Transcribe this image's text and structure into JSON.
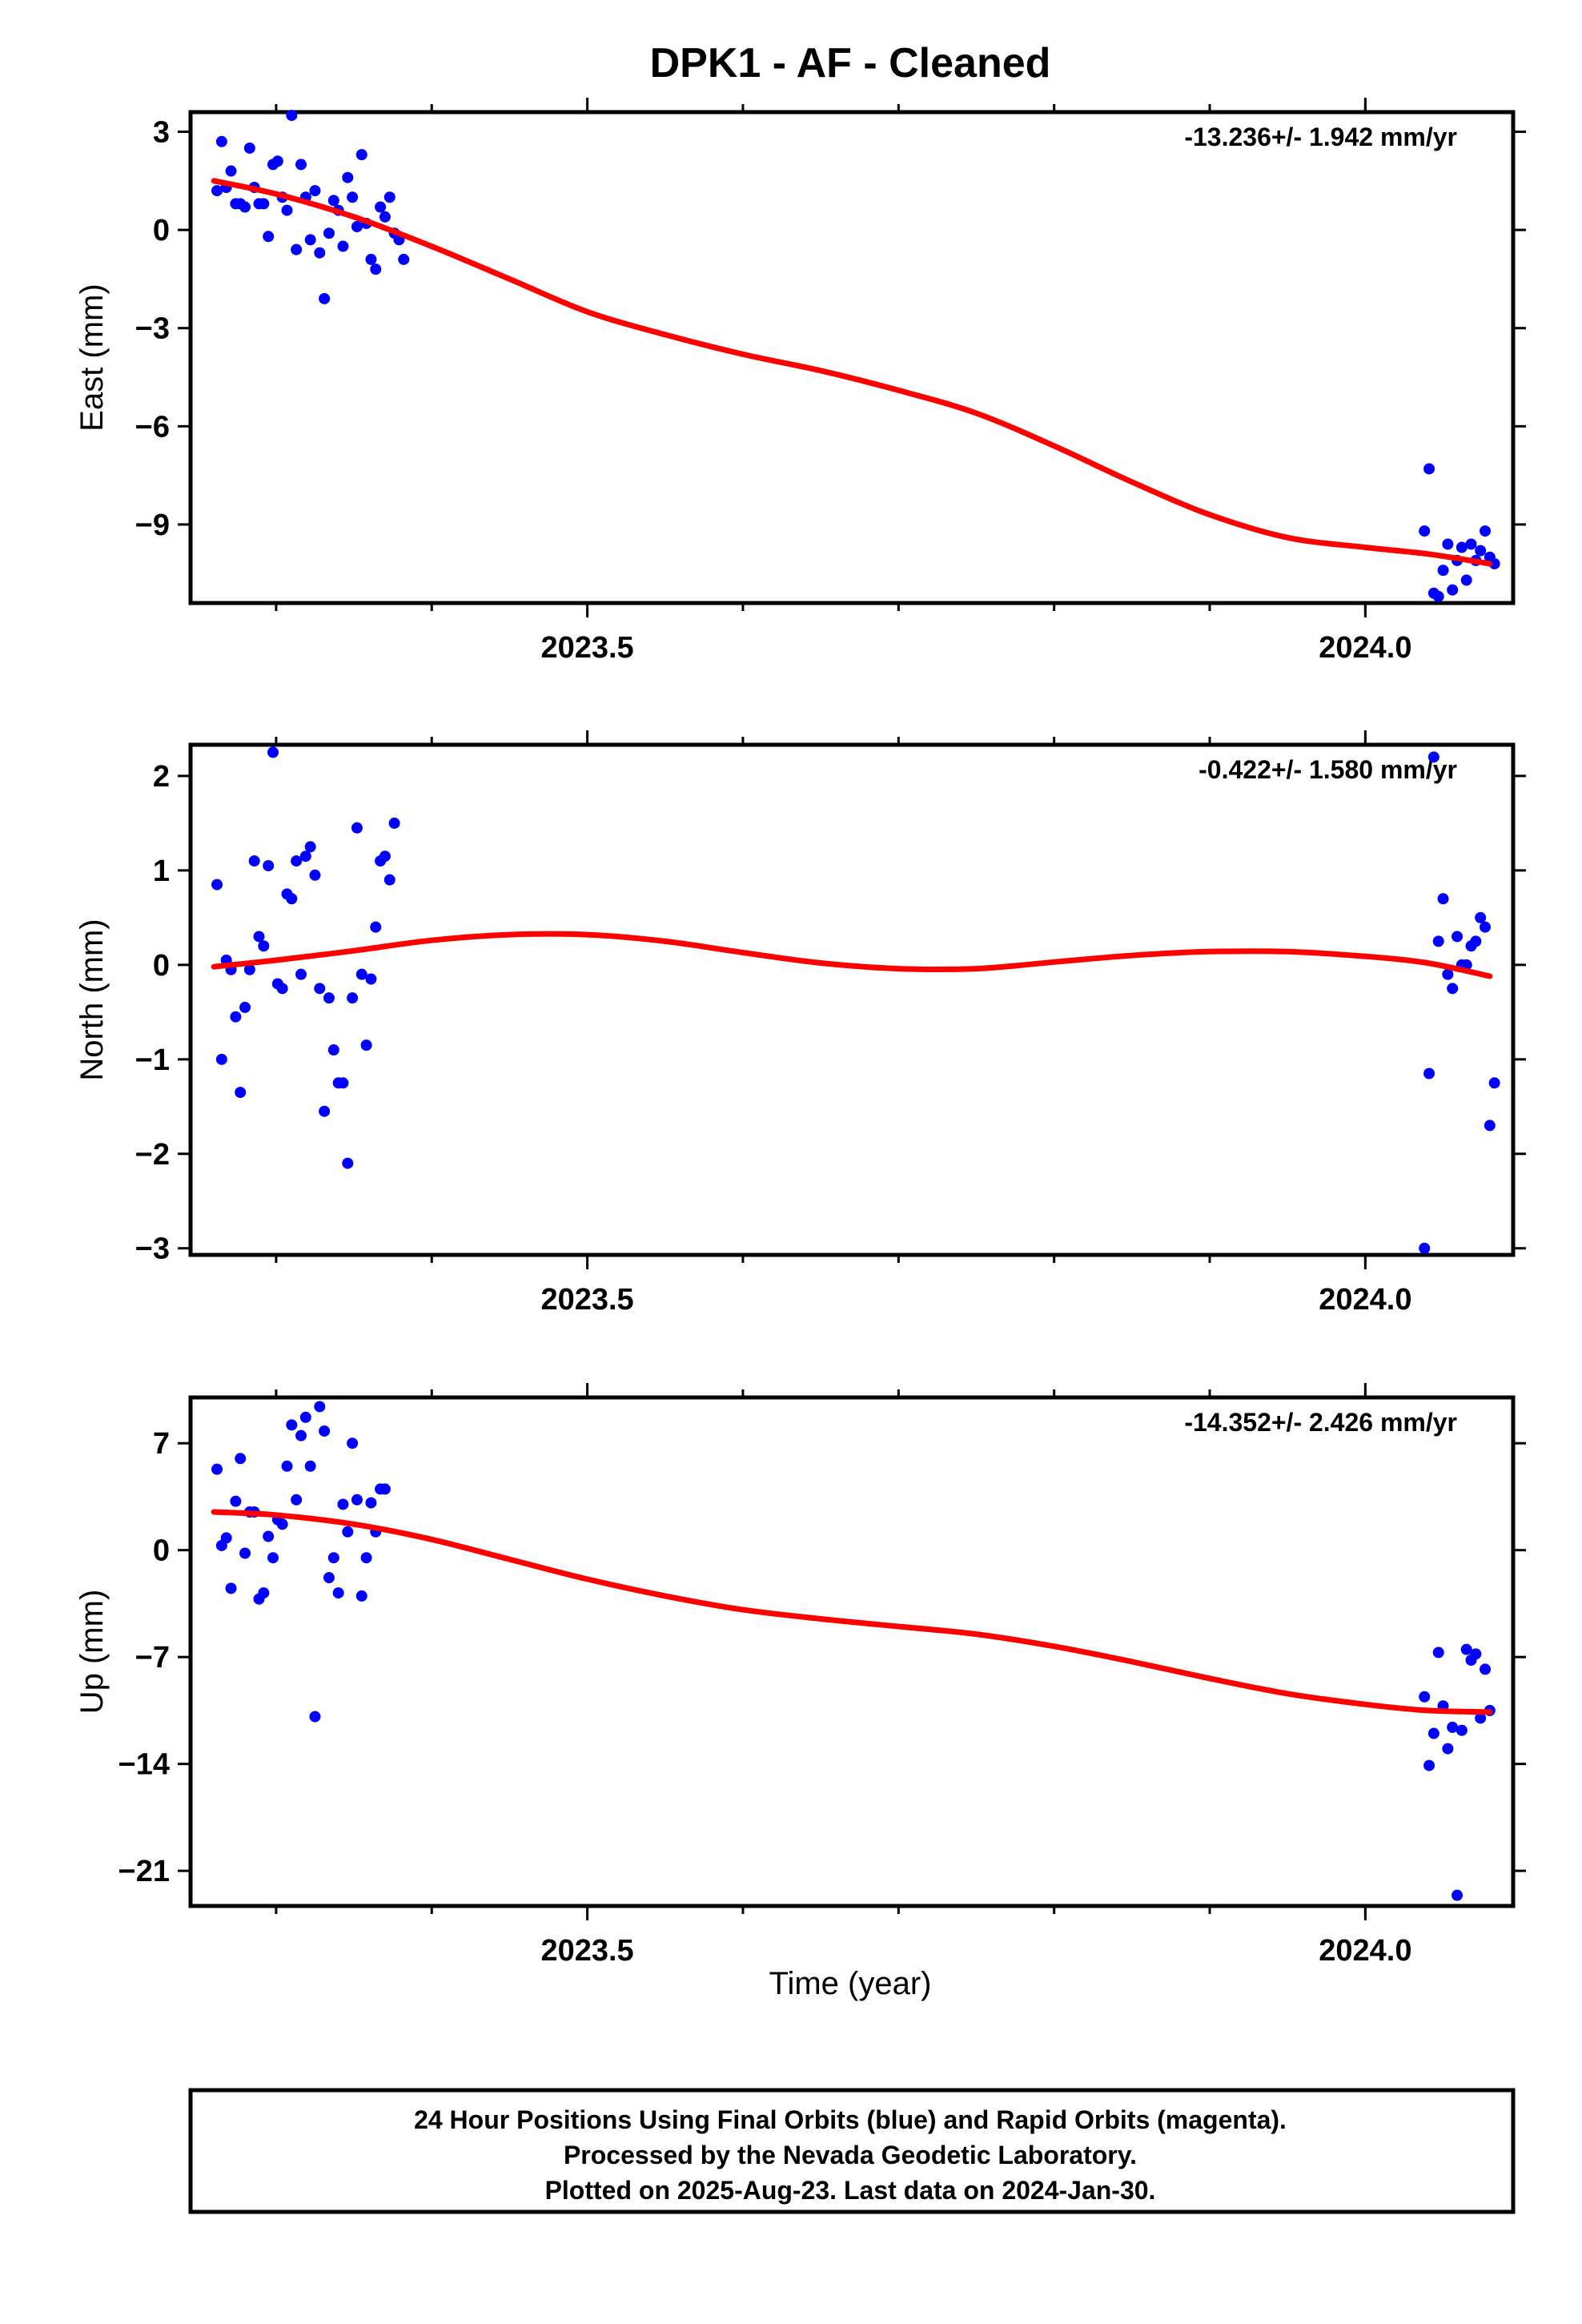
{
  "title": "DPK1  - AF - Cleaned",
  "xlabel": "Time (year)",
  "note_lines": [
    "24 Hour Positions Using Final Orbits (blue) and Rapid Orbits (magenta).",
    "Processed by the Nevada Geodetic Laboratory.",
    "Plotted on 2025-Aug-23. Last data on 2024-Jan-30."
  ],
  "colors": {
    "points": "#0000ff",
    "fit": "#ff0000",
    "frame": "#000000"
  },
  "chart_data": [
    {
      "type": "scatter",
      "component": "East",
      "ylabel": "East (mm)",
      "rate_text": "-13.236+/- 1.942 mm/yr",
      "xlim": [
        2023.245,
        2024.095
      ],
      "ylim": [
        -11.4,
        3.6
      ],
      "yticks": [
        3,
        0,
        -3,
        -6,
        -9
      ],
      "ytick_labels": [
        "3",
        "0",
        "−3",
        "−6",
        "−9"
      ],
      "xticks_major": [
        2023.5,
        2024.0
      ],
      "xtick_labels": [
        "2023.5",
        "2024.0"
      ],
      "xticks_minor": [
        2023.3,
        2023.4,
        2023.6,
        2023.7,
        2023.8,
        2023.9,
        2024.0
      ],
      "points": [
        [
          2023.262,
          1.2
        ],
        [
          2023.265,
          2.7
        ],
        [
          2023.268,
          1.3
        ],
        [
          2023.271,
          1.8
        ],
        [
          2023.274,
          0.8
        ],
        [
          2023.277,
          0.8
        ],
        [
          2023.28,
          0.7
        ],
        [
          2023.283,
          2.5
        ],
        [
          2023.286,
          1.3
        ],
        [
          2023.289,
          0.8
        ],
        [
          2023.292,
          0.8
        ],
        [
          2023.295,
          -0.2
        ],
        [
          2023.298,
          2.0
        ],
        [
          2023.301,
          2.1
        ],
        [
          2023.304,
          1.0
        ],
        [
          2023.307,
          0.6
        ],
        [
          2023.31,
          3.5
        ],
        [
          2023.313,
          -0.6
        ],
        [
          2023.316,
          2.0
        ],
        [
          2023.319,
          1.0
        ],
        [
          2023.322,
          -0.3
        ],
        [
          2023.325,
          1.2
        ],
        [
          2023.328,
          -0.7
        ],
        [
          2023.331,
          -2.1
        ],
        [
          2023.334,
          -0.1
        ],
        [
          2023.337,
          0.9
        ],
        [
          2023.34,
          0.6
        ],
        [
          2023.343,
          -0.5
        ],
        [
          2023.346,
          1.6
        ],
        [
          2023.349,
          1.0
        ],
        [
          2023.352,
          0.1
        ],
        [
          2023.355,
          2.3
        ],
        [
          2023.358,
          0.2
        ],
        [
          2023.361,
          -0.9
        ],
        [
          2023.364,
          -1.2
        ],
        [
          2023.367,
          0.7
        ],
        [
          2023.37,
          0.4
        ],
        [
          2023.373,
          1.0
        ],
        [
          2023.376,
          -0.1
        ],
        [
          2023.379,
          -0.3
        ],
        [
          2023.382,
          -0.9
        ],
        [
          2024.038,
          -9.2
        ],
        [
          2024.041,
          -7.3
        ],
        [
          2024.044,
          -11.1
        ],
        [
          2024.047,
          -11.2
        ],
        [
          2024.05,
          -10.4
        ],
        [
          2024.053,
          -9.6
        ],
        [
          2024.056,
          -11.0
        ],
        [
          2024.059,
          -10.1
        ],
        [
          2024.062,
          -9.7
        ],
        [
          2024.065,
          -10.7
        ],
        [
          2024.068,
          -9.6
        ],
        [
          2024.071,
          -10.1
        ],
        [
          2024.074,
          -9.8
        ],
        [
          2024.077,
          -9.2
        ],
        [
          2024.08,
          -10.0
        ],
        [
          2024.083,
          -10.2
        ]
      ],
      "fit": [
        [
          2023.26,
          1.5
        ],
        [
          2023.3,
          1.1
        ],
        [
          2023.35,
          0.4
        ],
        [
          2023.4,
          -0.5
        ],
        [
          2023.45,
          -1.5
        ],
        [
          2023.5,
          -2.5
        ],
        [
          2023.55,
          -3.2
        ],
        [
          2023.6,
          -3.8
        ],
        [
          2023.65,
          -4.3
        ],
        [
          2023.7,
          -4.9
        ],
        [
          2023.75,
          -5.6
        ],
        [
          2023.8,
          -6.6
        ],
        [
          2023.85,
          -7.7
        ],
        [
          2023.9,
          -8.7
        ],
        [
          2023.95,
          -9.4
        ],
        [
          2024.0,
          -9.7
        ],
        [
          2024.04,
          -9.9
        ],
        [
          2024.08,
          -10.2
        ]
      ]
    },
    {
      "type": "scatter",
      "component": "North",
      "ylabel": "North (mm)",
      "rate_text": "-0.422+/- 1.580 mm/yr",
      "xlim": [
        2023.245,
        2024.095
      ],
      "ylim": [
        -3.07,
        2.33
      ],
      "yticks": [
        2,
        1,
        0,
        -1,
        -2,
        -3
      ],
      "ytick_labels": [
        "2",
        "1",
        "0",
        "−1",
        "−2",
        "−3"
      ],
      "xticks_major": [
        2023.5,
        2024.0
      ],
      "xtick_labels": [
        "2023.5",
        "2024.0"
      ],
      "xticks_minor": [
        2023.3,
        2023.4,
        2023.6,
        2023.7,
        2023.8,
        2023.9,
        2024.0
      ],
      "points": [
        [
          2023.262,
          0.85
        ],
        [
          2023.265,
          -1.0
        ],
        [
          2023.268,
          0.05
        ],
        [
          2023.271,
          -0.05
        ],
        [
          2023.274,
          -0.55
        ],
        [
          2023.277,
          -1.35
        ],
        [
          2023.28,
          -0.45
        ],
        [
          2023.283,
          -0.05
        ],
        [
          2023.286,
          1.1
        ],
        [
          2023.289,
          0.3
        ],
        [
          2023.292,
          0.2
        ],
        [
          2023.295,
          1.05
        ],
        [
          2023.298,
          2.25
        ],
        [
          2023.301,
          -0.2
        ],
        [
          2023.304,
          -0.25
        ],
        [
          2023.307,
          0.75
        ],
        [
          2023.31,
          0.7
        ],
        [
          2023.313,
          1.1
        ],
        [
          2023.316,
          -0.1
        ],
        [
          2023.319,
          1.15
        ],
        [
          2023.322,
          1.25
        ],
        [
          2023.325,
          0.95
        ],
        [
          2023.328,
          -0.25
        ],
        [
          2023.331,
          -1.55
        ],
        [
          2023.334,
          -0.35
        ],
        [
          2023.337,
          -0.9
        ],
        [
          2023.34,
          -1.25
        ],
        [
          2023.343,
          -1.25
        ],
        [
          2023.346,
          -2.1
        ],
        [
          2023.349,
          -0.35
        ],
        [
          2023.352,
          1.45
        ],
        [
          2023.355,
          -0.1
        ],
        [
          2023.358,
          -0.85
        ],
        [
          2023.361,
          -0.15
        ],
        [
          2023.364,
          0.4
        ],
        [
          2023.367,
          1.1
        ],
        [
          2023.37,
          1.15
        ],
        [
          2023.373,
          0.9
        ],
        [
          2023.376,
          1.5
        ],
        [
          2024.038,
          -3.0
        ],
        [
          2024.041,
          -1.15
        ],
        [
          2024.044,
          2.2
        ],
        [
          2024.047,
          0.25
        ],
        [
          2024.05,
          0.7
        ],
        [
          2024.053,
          -0.1
        ],
        [
          2024.056,
          -0.25
        ],
        [
          2024.059,
          0.3
        ],
        [
          2024.062,
          0.0
        ],
        [
          2024.065,
          0.0
        ],
        [
          2024.068,
          0.2
        ],
        [
          2024.071,
          0.25
        ],
        [
          2024.074,
          0.5
        ],
        [
          2024.077,
          0.4
        ],
        [
          2024.08,
          -1.7
        ],
        [
          2024.083,
          -1.25
        ]
      ],
      "fit": [
        [
          2023.26,
          -0.02
        ],
        [
          2023.3,
          0.05
        ],
        [
          2023.35,
          0.15
        ],
        [
          2023.4,
          0.26
        ],
        [
          2023.45,
          0.32
        ],
        [
          2023.5,
          0.32
        ],
        [
          2023.55,
          0.25
        ],
        [
          2023.6,
          0.13
        ],
        [
          2023.65,
          0.02
        ],
        [
          2023.7,
          -0.04
        ],
        [
          2023.75,
          -0.04
        ],
        [
          2023.8,
          0.03
        ],
        [
          2023.85,
          0.1
        ],
        [
          2023.9,
          0.14
        ],
        [
          2023.95,
          0.14
        ],
        [
          2024.0,
          0.09
        ],
        [
          2024.04,
          0.02
        ],
        [
          2024.08,
          -0.12
        ]
      ]
    },
    {
      "type": "scatter",
      "component": "Up",
      "ylabel": "Up (mm)",
      "rate_text": "-14.352+/- 2.426 mm/yr",
      "xlim": [
        2023.245,
        2024.095
      ],
      "ylim": [
        -23.3,
        10.0
      ],
      "yticks": [
        7,
        0,
        -7,
        -14,
        -21
      ],
      "ytick_labels": [
        "7",
        "0",
        "−7",
        "−14",
        "−21"
      ],
      "xticks_major": [
        2023.5,
        2024.0
      ],
      "xtick_labels": [
        "2023.5",
        "2024.0"
      ],
      "xticks_minor": [
        2023.3,
        2023.4,
        2023.6,
        2023.7,
        2023.8,
        2023.9,
        2024.0
      ],
      "points": [
        [
          2023.262,
          5.3
        ],
        [
          2023.265,
          0.3
        ],
        [
          2023.268,
          0.8
        ],
        [
          2023.271,
          -2.5
        ],
        [
          2023.274,
          3.2
        ],
        [
          2023.277,
          6.0
        ],
        [
          2023.28,
          -0.2
        ],
        [
          2023.283,
          2.5
        ],
        [
          2023.286,
          2.5
        ],
        [
          2023.289,
          -3.2
        ],
        [
          2023.292,
          -2.8
        ],
        [
          2023.295,
          0.9
        ],
        [
          2023.298,
          -0.5
        ],
        [
          2023.301,
          2.0
        ],
        [
          2023.304,
          1.7
        ],
        [
          2023.307,
          5.5
        ],
        [
          2023.31,
          8.2
        ],
        [
          2023.313,
          3.3
        ],
        [
          2023.316,
          7.5
        ],
        [
          2023.319,
          8.7
        ],
        [
          2023.322,
          5.5
        ],
        [
          2023.325,
          -10.9
        ],
        [
          2023.328,
          9.4
        ],
        [
          2023.331,
          7.8
        ],
        [
          2023.334,
          -1.8
        ],
        [
          2023.337,
          -0.5
        ],
        [
          2023.34,
          -2.8
        ],
        [
          2023.343,
          3.0
        ],
        [
          2023.346,
          1.2
        ],
        [
          2023.349,
          7.0
        ],
        [
          2023.352,
          3.3
        ],
        [
          2023.355,
          -3.0
        ],
        [
          2023.358,
          -0.5
        ],
        [
          2023.361,
          3.1
        ],
        [
          2023.364,
          1.2
        ],
        [
          2023.367,
          4.0
        ],
        [
          2023.37,
          4.0
        ],
        [
          2024.038,
          -9.6
        ],
        [
          2024.041,
          -14.1
        ],
        [
          2024.044,
          -12.0
        ],
        [
          2024.047,
          -6.7
        ],
        [
          2024.05,
          -10.2
        ],
        [
          2024.053,
          -13.0
        ],
        [
          2024.056,
          -11.6
        ],
        [
          2024.059,
          -22.6
        ],
        [
          2024.062,
          -11.8
        ],
        [
          2024.065,
          -6.5
        ],
        [
          2024.068,
          -7.2
        ],
        [
          2024.071,
          -6.8
        ],
        [
          2024.074,
          -11.0
        ],
        [
          2024.077,
          -7.8
        ],
        [
          2024.08,
          -10.5
        ]
      ],
      "fit": [
        [
          2023.26,
          2.5
        ],
        [
          2023.3,
          2.3
        ],
        [
          2023.35,
          1.7
        ],
        [
          2023.4,
          0.7
        ],
        [
          2023.45,
          -0.6
        ],
        [
          2023.5,
          -1.9
        ],
        [
          2023.55,
          -3.0
        ],
        [
          2023.6,
          -3.9
        ],
        [
          2023.65,
          -4.5
        ],
        [
          2023.7,
          -5.0
        ],
        [
          2023.75,
          -5.5
        ],
        [
          2023.8,
          -6.3
        ],
        [
          2023.85,
          -7.3
        ],
        [
          2023.9,
          -8.4
        ],
        [
          2023.95,
          -9.4
        ],
        [
          2024.0,
          -10.1
        ],
        [
          2024.04,
          -10.5
        ],
        [
          2024.08,
          -10.6
        ]
      ]
    }
  ]
}
